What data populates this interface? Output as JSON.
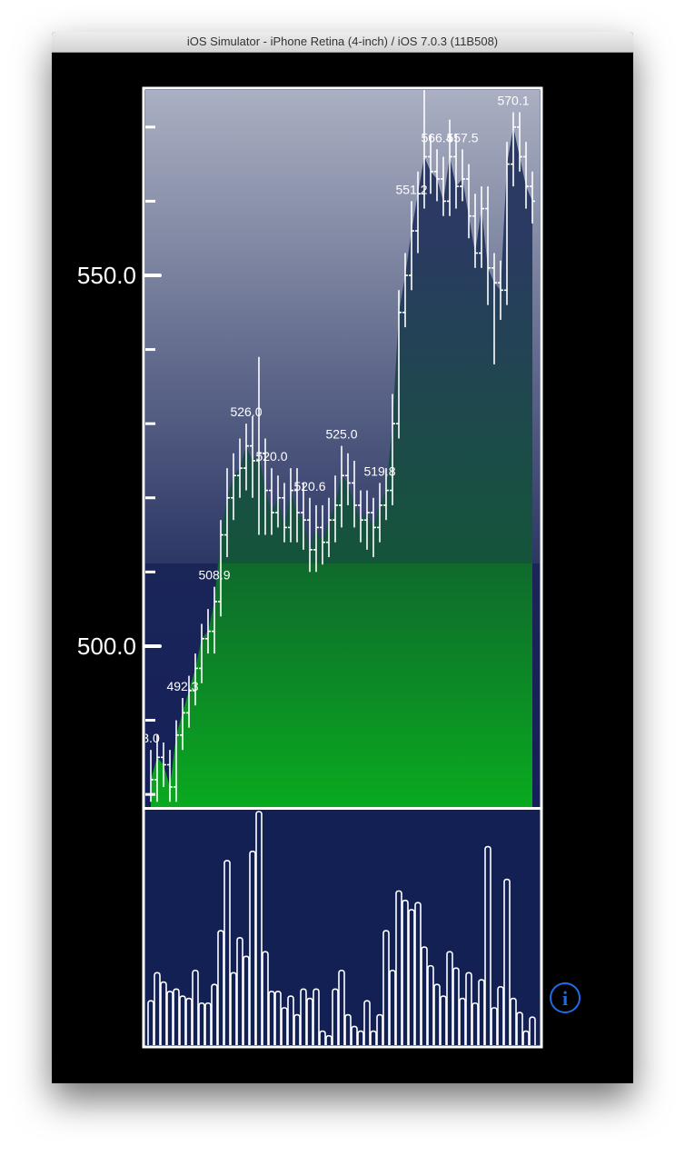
{
  "window": {
    "title": "iOS Simulator - iPhone Retina (4-inch) / iOS 7.0.3 (11B508)"
  },
  "chart_data": {
    "type": "ohlc",
    "open": [
      480,
      482,
      485,
      484,
      481,
      488,
      491,
      494,
      497,
      501,
      502,
      506,
      515,
      520,
      523,
      524,
      527,
      525,
      526,
      521,
      518,
      520,
      516,
      521,
      518,
      517,
      513,
      516,
      514,
      517,
      519,
      523,
      522,
      519,
      517,
      518,
      516,
      519,
      521,
      530,
      545,
      550,
      556,
      561,
      566,
      564,
      563,
      560,
      566,
      562,
      563,
      558,
      553,
      559,
      551,
      549,
      548,
      565,
      570,
      566,
      562
    ],
    "high": [
      486,
      488,
      487,
      486,
      490,
      493,
      496,
      499,
      503,
      505,
      508,
      517,
      524,
      526,
      528,
      530,
      531,
      539,
      528,
      524,
      523,
      522,
      524,
      524,
      522,
      520,
      519,
      519,
      520,
      523,
      527,
      526,
      525,
      521,
      521,
      520,
      522,
      524,
      534,
      548,
      553,
      560,
      564,
      575,
      569,
      567,
      566,
      571,
      569,
      567,
      565,
      561,
      562,
      562,
      553,
      552,
      568,
      572,
      572,
      568,
      564
    ],
    "low": [
      479,
      479,
      481,
      479,
      479,
      486,
      489,
      492,
      495,
      499,
      499,
      504,
      512,
      517,
      520,
      521,
      520,
      515,
      515,
      515,
      516,
      514,
      514,
      514,
      513,
      510,
      510,
      511,
      512,
      514,
      516,
      519,
      516,
      514,
      513,
      512,
      514,
      517,
      519,
      528,
      543,
      548,
      553,
      559,
      561,
      560,
      558,
      558,
      559,
      560,
      555,
      551,
      551,
      546,
      538,
      544,
      546,
      562,
      564,
      559,
      557
    ],
    "close": [
      482,
      485,
      484,
      481,
      488,
      491,
      494,
      497,
      501,
      502,
      506,
      515,
      520,
      523,
      524,
      527,
      525,
      526,
      521,
      518,
      520,
      516,
      521,
      518,
      517,
      513,
      516,
      514,
      517,
      519,
      523,
      522,
      519,
      517,
      518,
      516,
      519,
      521,
      530,
      545,
      550,
      556,
      561,
      566,
      564,
      563,
      560,
      566,
      562,
      563,
      558,
      553,
      559,
      551,
      549,
      548,
      565,
      570,
      566,
      562,
      560
    ],
    "volume": [
      19,
      31,
      27,
      23,
      24,
      21,
      20,
      32,
      18,
      18,
      26,
      49,
      79,
      31,
      46,
      38,
      83,
      100,
      40,
      23,
      23,
      16,
      21,
      13,
      24,
      20,
      24,
      6,
      4,
      24,
      32,
      13,
      8,
      6,
      19,
      6,
      13,
      49,
      32,
      66,
      62,
      58,
      61,
      42,
      34,
      26,
      21,
      40,
      33,
      20,
      31,
      18,
      28,
      85,
      16,
      25,
      71,
      20,
      14,
      6,
      12
    ],
    "ylim": [
      478.3,
      575
    ],
    "yticks": [
      {
        "value": 500,
        "label": "500.0"
      },
      {
        "value": 550,
        "label": "550.0"
      }
    ],
    "minor_yticks": [
      480,
      490,
      510,
      520,
      530,
      540,
      560,
      570
    ],
    "volume_ylim": [
      0,
      100
    ],
    "annotations": [
      {
        "text": "3.0",
        "bar": 0
      },
      {
        "text": "492.3",
        "bar": 5
      },
      {
        "text": "508.9",
        "bar": 10
      },
      {
        "text": "526.0",
        "bar": 15
      },
      {
        "text": "520.0",
        "bar": 19
      },
      {
        "text": "520.6",
        "bar": 25
      },
      {
        "text": "525.0",
        "bar": 30
      },
      {
        "text": "519.8",
        "bar": 36
      },
      {
        "text": "551.2",
        "bar": 41
      },
      {
        "text": "566.4",
        "bar": 45
      },
      {
        "text": "557.5",
        "bar": 49
      },
      {
        "text": "570.1",
        "bar": 57
      }
    ]
  }
}
